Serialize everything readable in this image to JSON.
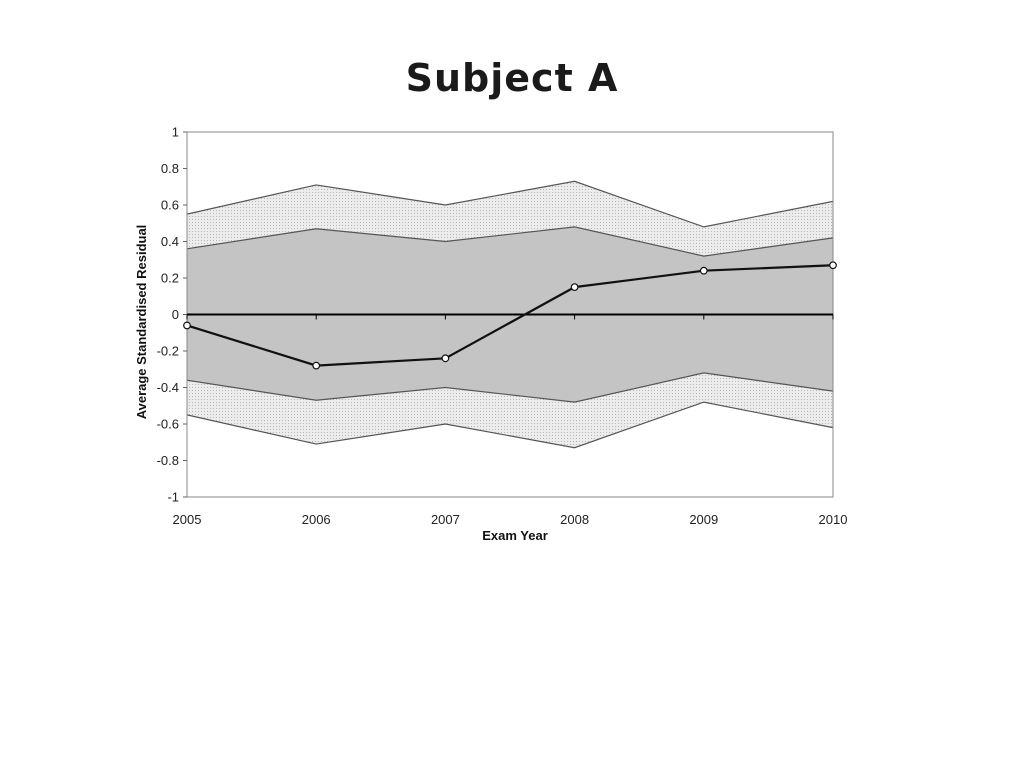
{
  "slide": {
    "title": "Subject A"
  },
  "chart_data": {
    "type": "area",
    "title": "Subject A",
    "xlabel": "Exam Year",
    "ylabel": "Average Standardised Residual",
    "categories": [
      "2005",
      "2006",
      "2007",
      "2008",
      "2009",
      "2010"
    ],
    "ylim": [
      -1,
      1
    ],
    "yticks": [
      "1",
      "0.8",
      "0.6",
      "0.4",
      "0.2",
      "0",
      "-0.2",
      "-0.4",
      "-0.6",
      "-0.8",
      "-1"
    ],
    "bands": {
      "outer_upper": [
        0.55,
        0.71,
        0.6,
        0.73,
        0.48,
        0.62
      ],
      "inner_upper": [
        0.36,
        0.47,
        0.4,
        0.48,
        0.32,
        0.42
      ],
      "inner_lower": [
        -0.36,
        -0.47,
        -0.4,
        -0.48,
        -0.32,
        -0.42
      ],
      "outer_lower": [
        -0.55,
        -0.71,
        -0.6,
        -0.73,
        -0.48,
        -0.62
      ]
    },
    "series": [
      {
        "values": [
          -0.06,
          -0.28,
          -0.24,
          0.15,
          0.24,
          0.27
        ]
      }
    ],
    "grid": false,
    "legend": "none",
    "colors": {
      "inner_band": "#c4c4c4",
      "outer_band": "#e6e6e6",
      "band_edge": "#555555",
      "line": "#111111",
      "marker_fill": "#ffffff",
      "zero_line": "#000000",
      "plot_border": "#888888"
    }
  }
}
